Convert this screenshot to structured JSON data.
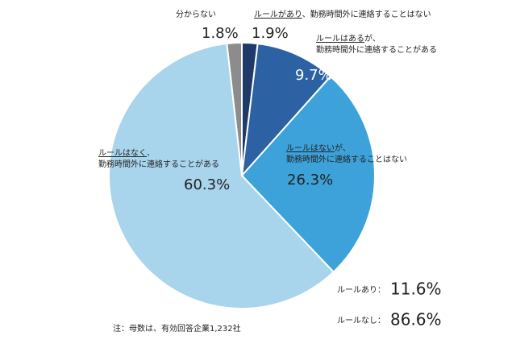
{
  "chart_data": {
    "type": "pie",
    "labels": [
      {
        "underline": "ルールがあり",
        "lines": [
          "、勤務時間外に連絡することはない"
        ]
      },
      {
        "underline": "ルールはある",
        "lines": [
          "が、",
          "勤務時間外に連絡することがある"
        ]
      },
      {
        "underline": "ルールはない",
        "lines": [
          "が、",
          "勤務時間外に連絡することはない"
        ]
      },
      {
        "underline": "ルールはなく",
        "lines": [
          "、",
          "勤務時間外に連絡することがある"
        ]
      },
      {
        "lines": [
          "分からない"
        ]
      }
    ],
    "values": [
      1.9,
      9.7,
      26.3,
      60.3,
      1.8
    ],
    "value_labels": [
      "1.9%",
      "9.7%",
      "26.3%",
      "60.3%",
      "1.8%"
    ],
    "colors": [
      "#1f3a68",
      "#2c62a3",
      "#3da2da",
      "#a8d4ec",
      "#8c8c8c"
    ],
    "summary": [
      {
        "label": "ルールあり：",
        "value_label": "11.6%"
      },
      {
        "label": "ルールなし：",
        "value_label": "86.6%"
      }
    ],
    "note": "注：母数は、有効回答企業1,232社"
  }
}
